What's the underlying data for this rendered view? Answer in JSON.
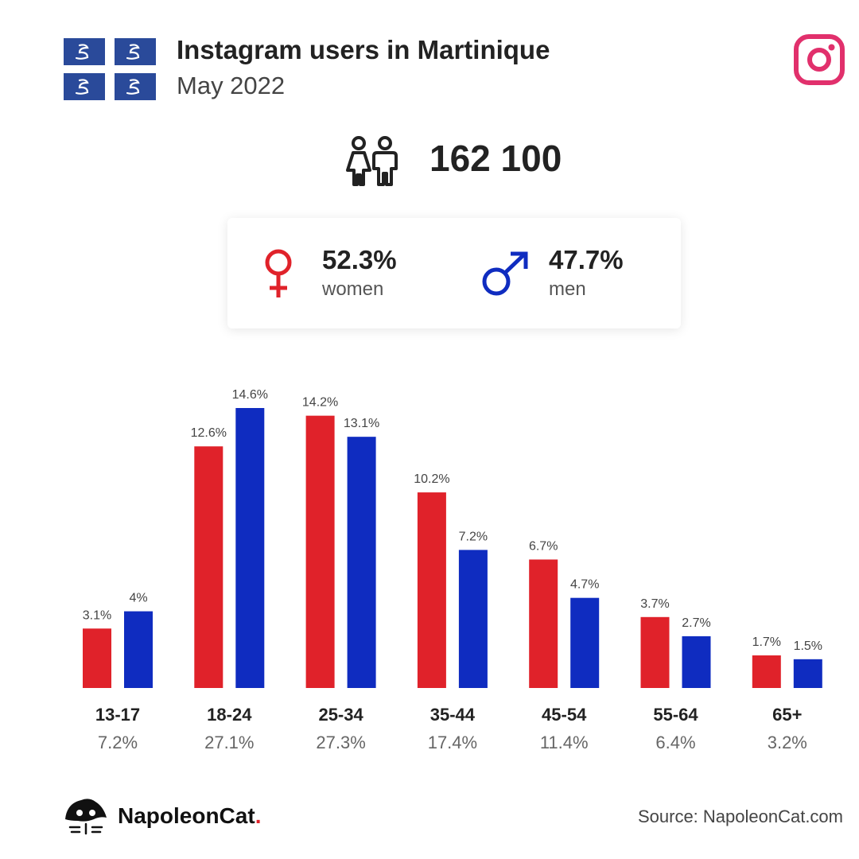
{
  "header": {
    "title": "Instagram users in Martinique",
    "subtitle": "May 2022"
  },
  "summary": {
    "total": "162 100"
  },
  "gender": {
    "women_pct": "52.3%",
    "women_label": "women",
    "men_pct": "47.7%",
    "men_label": "men"
  },
  "colors": {
    "women": "#e0222a",
    "men": "#0f2cc0",
    "instagram": "#e1306c",
    "flag_blue": "#2a4a9a"
  },
  "icons": {
    "flag": "martinique-flag-icon",
    "instagram": "instagram-icon",
    "people": "people-icon",
    "female": "female-symbol-icon",
    "male": "male-symbol-icon",
    "logo": "napoleoncat-logo-icon"
  },
  "chart_data": {
    "type": "bar",
    "categories": [
      "13-17",
      "18-24",
      "25-34",
      "35-44",
      "45-54",
      "55-64",
      "65+"
    ],
    "category_totals": [
      "7.2%",
      "27.1%",
      "27.3%",
      "17.4%",
      "11.4%",
      "6.4%",
      "3.2%"
    ],
    "series": [
      {
        "values": [
          3.1,
          12.6,
          14.2,
          10.2,
          6.7,
          3.7,
          1.7
        ],
        "labels": [
          "3.1%",
          "12.6%",
          "14.2%",
          "10.2%",
          "6.7%",
          "3.7%",
          "1.7%"
        ],
        "color": "#e0222a"
      },
      {
        "values": [
          4,
          14.6,
          13.1,
          7.2,
          4.7,
          2.7,
          1.5
        ],
        "labels": [
          "4%",
          "14.6%",
          "13.1%",
          "7.2%",
          "4.7%",
          "2.7%",
          "1.5%"
        ],
        "color": "#0f2cc0"
      }
    ],
    "ylim": [
      0,
      14.6
    ],
    "grid": false
  },
  "footer": {
    "brand_name": "NapoleonCat",
    "brand_dot": ".",
    "source": "Source: NapoleonCat.com"
  }
}
